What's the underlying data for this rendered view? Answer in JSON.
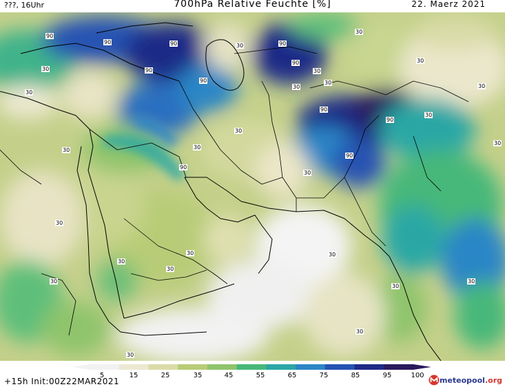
{
  "header": {
    "left": "???, 16Uhr",
    "title": "700hPa Relative Feuchte [%]",
    "date": "22. Maerz 2021"
  },
  "footer": {
    "init": "+15h Init:00Z22MAR2021",
    "logo_text": "meteopool",
    "logo_suffix": ".org"
  },
  "legend": {
    "ticks": [
      "5",
      "15",
      "25",
      "35",
      "45",
      "55",
      "65",
      "75",
      "85",
      "95",
      "100"
    ],
    "colors": [
      "#f2f2f2",
      "#ece9d2",
      "#d9dca7",
      "#b8cc77",
      "#8fc46c",
      "#47b879",
      "#2aa7a5",
      "#2b86c6",
      "#2553b2",
      "#1f2a87",
      "#2a1a5e"
    ]
  },
  "map": {
    "contour_labels": [
      {
        "text": "90"
      },
      {
        "text": "90"
      },
      {
        "text": "30"
      },
      {
        "text": "90"
      },
      {
        "text": "90"
      },
      {
        "text": "90"
      },
      {
        "text": "30"
      },
      {
        "text": "90"
      },
      {
        "text": "90"
      },
      {
        "text": "30"
      },
      {
        "text": "30"
      },
      {
        "text": "90"
      },
      {
        "text": "30"
      },
      {
        "text": "30"
      },
      {
        "text": "30"
      },
      {
        "text": "30"
      },
      {
        "text": "90"
      },
      {
        "text": "30"
      },
      {
        "text": "90"
      },
      {
        "text": "30"
      },
      {
        "text": "30"
      },
      {
        "text": "30"
      },
      {
        "text": "90"
      },
      {
        "text": "30"
      },
      {
        "text": "30"
      },
      {
        "text": "30"
      },
      {
        "text": "30"
      },
      {
        "text": "30"
      },
      {
        "text": "30"
      },
      {
        "text": "30"
      },
      {
        "text": "30"
      },
      {
        "text": "30"
      },
      {
        "text": "30"
      },
      {
        "text": "30"
      },
      {
        "text": "30"
      },
      {
        "text": "30"
      }
    ]
  }
}
